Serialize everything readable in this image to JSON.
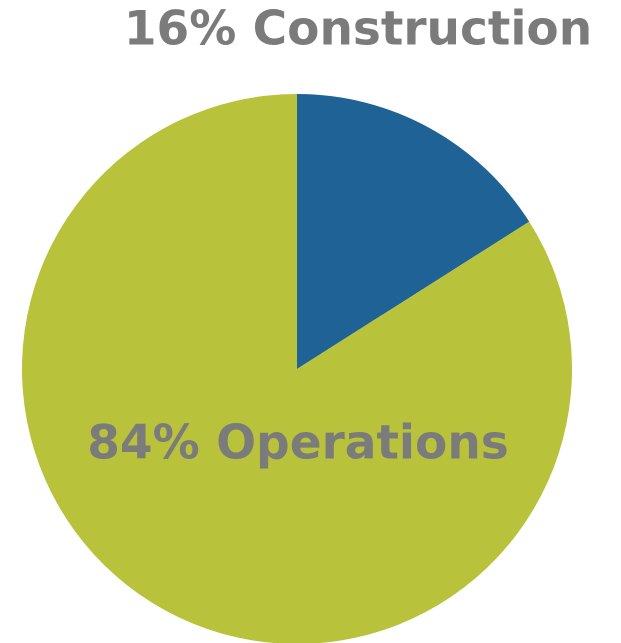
{
  "chart_data": {
    "type": "pie",
    "categories": [
      "Construction",
      "Operations"
    ],
    "values": [
      16,
      84
    ],
    "value_labels": [
      "16% Construction",
      "84% Operations"
    ],
    "colors": [
      "#1f6396",
      "#b9c23b"
    ]
  }
}
